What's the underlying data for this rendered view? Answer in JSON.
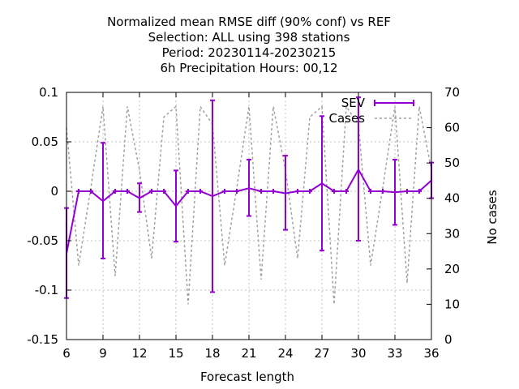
{
  "chart_data": {
    "type": "line",
    "title_lines": [
      "Normalized mean RMSE diff (90% conf) vs REF",
      "Selection: ALL using   398 stations",
      "Period: 20230114-20230215",
      "6h Precipitation   Hours:  00,12"
    ],
    "xlabel": "Forecast length",
    "ylabel": "",
    "y2label": "No cases",
    "xlim": [
      6,
      36
    ],
    "ylim": [
      -0.15,
      0.1
    ],
    "y2lim": [
      0,
      70
    ],
    "xticks": [
      "6",
      "9",
      "12",
      "15",
      "18",
      "21",
      "24",
      "27",
      "30",
      "33",
      "36"
    ],
    "yticks": [
      "0.1",
      "0.05",
      "0",
      "-0.05",
      "-0.1",
      "-0.15"
    ],
    "y2ticks": [
      "70",
      "60",
      "50",
      "40",
      "30",
      "20",
      "10",
      "0"
    ],
    "grid": true,
    "legend_position": "top-right",
    "colors": {
      "sev": "#9400d3",
      "cases": "#a0a0a0",
      "grid": "#c0c0c0"
    },
    "series": [
      {
        "name": "SEV",
        "style": "errorbars-line",
        "x": [
          6,
          7,
          8,
          9,
          10,
          11,
          12,
          13,
          14,
          15,
          16,
          17,
          18,
          19,
          20,
          21,
          22,
          23,
          24,
          25,
          26,
          27,
          28,
          29,
          30,
          31,
          32,
          33,
          34,
          35,
          36
        ],
        "y": [
          -0.063,
          0.0,
          0.0,
          -0.01,
          0.0,
          0.0,
          -0.007,
          0.0,
          0.0,
          -0.015,
          0.0,
          0.0,
          -0.005,
          0.0,
          0.0,
          0.003,
          0.0,
          0.0,
          -0.002,
          0.0,
          0.0,
          0.008,
          0.0,
          0.0,
          0.022,
          0.0,
          0.0,
          -0.001,
          0.0,
          0.0,
          0.011
        ],
        "ylow": [
          -0.108,
          0.0,
          0.0,
          -0.068,
          0.0,
          0.0,
          -0.021,
          0.0,
          0.0,
          -0.051,
          0.0,
          0.0,
          -0.102,
          0.0,
          0.0,
          -0.025,
          0.0,
          0.0,
          -0.039,
          0.0,
          0.0,
          -0.06,
          0.0,
          0.0,
          -0.05,
          0.0,
          0.0,
          -0.034,
          0.0,
          0.0,
          -0.007
        ],
        "yhigh": [
          -0.017,
          0.0,
          0.0,
          0.049,
          0.0,
          0.0,
          0.008,
          0.0,
          0.0,
          0.021,
          0.0,
          0.0,
          0.092,
          0.0,
          0.0,
          0.032,
          0.0,
          0.0,
          0.036,
          0.0,
          0.0,
          0.076,
          0.0,
          0.0,
          0.095,
          0.0,
          0.0,
          0.032,
          0.0,
          0.0,
          0.029
        ]
      },
      {
        "name": "Cases",
        "style": "dashed-line",
        "axis": "y2",
        "x": [
          6,
          7,
          8,
          9,
          10,
          11,
          12,
          13,
          14,
          15,
          16,
          17,
          18,
          19,
          20,
          21,
          22,
          23,
          24,
          25,
          26,
          27,
          28,
          29,
          30,
          31,
          32,
          33,
          34,
          35,
          36
        ],
        "y": [
          60,
          21,
          43,
          66,
          18,
          66,
          48,
          23,
          63,
          66,
          10,
          66,
          61,
          21,
          43,
          66,
          17,
          66,
          48,
          23,
          63,
          66,
          10,
          66,
          61,
          21,
          43,
          66,
          16,
          66,
          48
        ]
      }
    ]
  }
}
